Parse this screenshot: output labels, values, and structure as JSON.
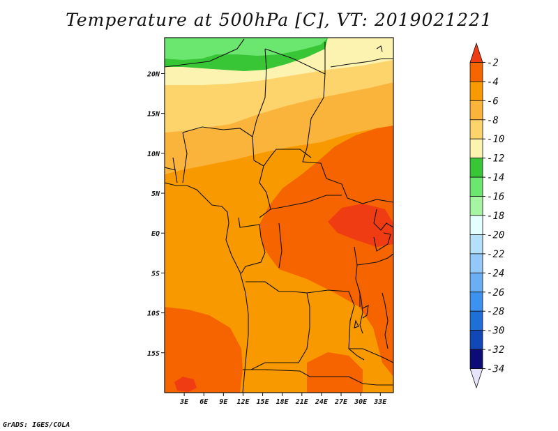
{
  "title": "Temperature at 500hPa [C], VT: 2019021221",
  "credit": "GrADS: IGES/COLA",
  "map": {
    "lon_ticks": [
      "3E",
      "6E",
      "9E",
      "12E",
      "15E",
      "18E",
      "21E",
      "24E",
      "27E",
      "30E",
      "33E"
    ],
    "lat_ticks": [
      "20N",
      "15N",
      "10N",
      "5N",
      "EQ",
      "5S",
      "10S",
      "15S"
    ],
    "lon_range": [
      0,
      35
    ],
    "lat_range": [
      -20,
      24.5
    ]
  },
  "colorbar": {
    "labels": [
      "-2",
      "-4",
      "-6",
      "-8",
      "-10",
      "-12",
      "-14",
      "-16",
      "-18",
      "-20",
      "-22",
      "-24",
      "-26",
      "-28",
      "-30",
      "-32",
      "-34"
    ],
    "colors": [
      "#f03c12",
      "#f66400",
      "#f99900",
      "#fbb43b",
      "#fdd46b",
      "#fdf3b0",
      "#38c536",
      "#6be66e",
      "#a6f5a2",
      "#e4ffff",
      "#b5e0fa",
      "#93c8f8",
      "#6aaff3",
      "#3c92ee",
      "#1e6fd8",
      "#1247b7",
      "#0c0c78",
      "#e6e4fa"
    ]
  },
  "legend_colors": {
    "t_neg4_to_neg2": "#f03c12",
    "t_neg6_to_neg4": "#f66400",
    "t_neg8_to_neg6": "#f99900",
    "t_neg10_to_neg8": "#fbb43b",
    "t_neg12_to_neg10": "#fdd46b",
    "t_band_light": "#fdf3b0",
    "t_band_green": "#38c536",
    "t_band_lightgreen": "#6be66e"
  }
}
